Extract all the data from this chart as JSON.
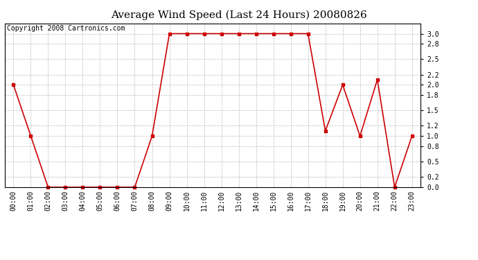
{
  "title": "Average Wind Speed (Last 24 Hours) 20080826",
  "copyright_text": "Copyright 2008 Cartronics.com",
  "hours": [
    "00:00",
    "01:00",
    "02:00",
    "03:00",
    "04:00",
    "05:00",
    "06:00",
    "07:00",
    "08:00",
    "09:00",
    "10:00",
    "11:00",
    "12:00",
    "13:00",
    "14:00",
    "15:00",
    "16:00",
    "17:00",
    "18:00",
    "19:00",
    "20:00",
    "21:00",
    "22:00",
    "23:00"
  ],
  "values": [
    2.0,
    1.0,
    0.0,
    0.0,
    0.0,
    0.0,
    0.0,
    0.0,
    1.0,
    3.0,
    3.0,
    3.0,
    3.0,
    3.0,
    3.0,
    3.0,
    3.0,
    3.0,
    1.1,
    2.0,
    1.0,
    2.1,
    0.0,
    1.0
  ],
  "line_color": "#cc0000",
  "marker_color": "#cc0000",
  "bg_color": "#ffffff",
  "grid_color": "#bbbbbb",
  "ylim": [
    0.0,
    3.2
  ],
  "yticks": [
    0.0,
    0.2,
    0.5,
    0.8,
    1.0,
    1.2,
    1.5,
    1.8,
    2.0,
    2.2,
    2.5,
    2.8,
    3.0
  ],
  "title_fontsize": 11,
  "copyright_fontsize": 7,
  "tick_fontsize": 7,
  "marker_size": 3,
  "line_width": 1.2
}
